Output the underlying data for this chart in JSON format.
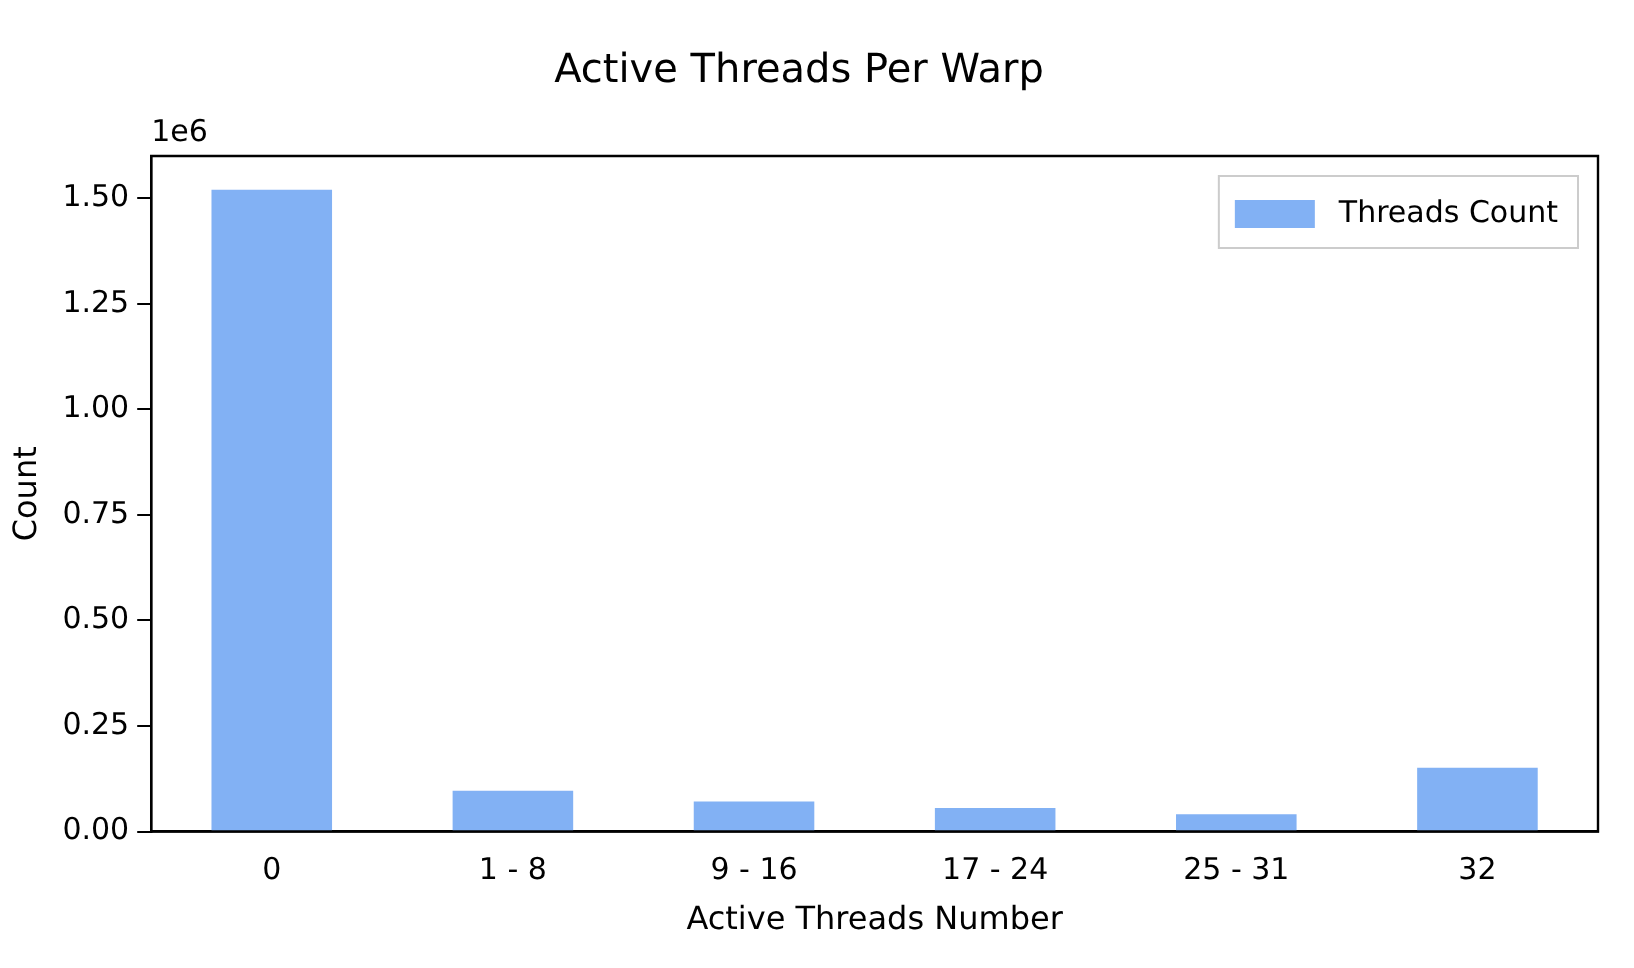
{
  "chart_data": {
    "type": "bar",
    "title": "Active Threads Per Warp",
    "xlabel": "Active Threads Number",
    "ylabel": "Count",
    "categories": [
      "0",
      "1 - 8",
      "9 - 16",
      "17 - 24",
      "25 - 31",
      "32"
    ],
    "series": [
      {
        "name": "Threads Count",
        "color": "#82b1f4",
        "values": [
          1.52,
          0.097,
          0.071,
          0.056,
          0.041,
          0.151
        ]
      }
    ],
    "ylim": [
      0,
      1.6
    ],
    "yticks": [
      {
        "value": 0,
        "label": "0.00"
      },
      {
        "value": 0.25,
        "label": "0.25"
      },
      {
        "value": 0.5,
        "label": "0.50"
      },
      {
        "value": 0.75,
        "label": "0.75"
      },
      {
        "value": 1,
        "label": "1.00"
      },
      {
        "value": 1.25,
        "label": "1.25"
      },
      {
        "value": 1.5,
        "label": "1.50"
      }
    ],
    "annotations": [
      "1e6"
    ],
    "legend": "top right",
    "grid": false
  }
}
